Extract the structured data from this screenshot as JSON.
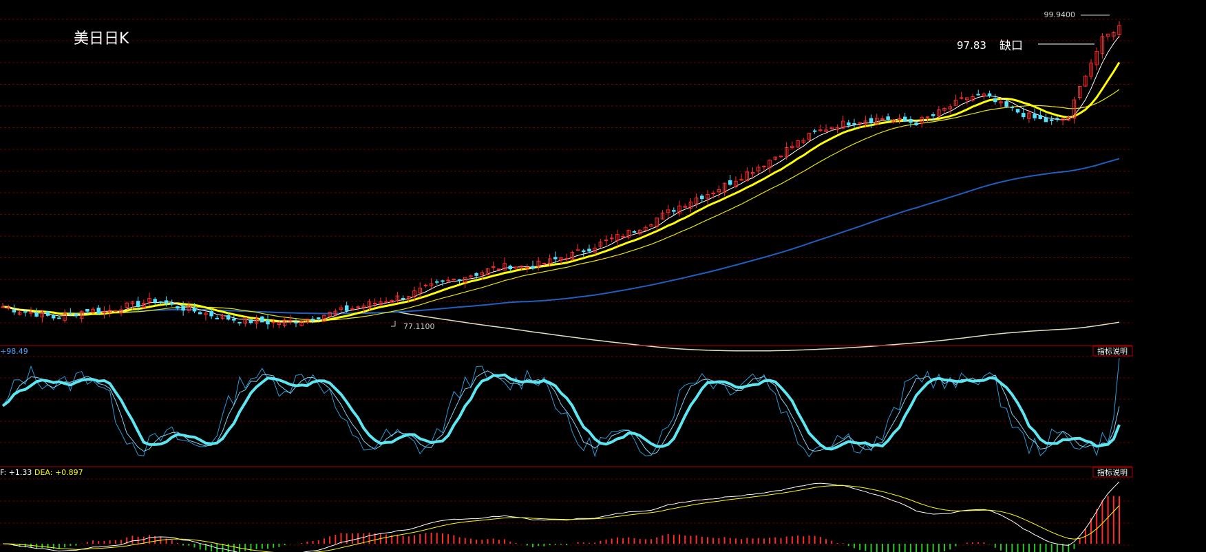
{
  "chart_data": [
    {
      "type": "candlestick",
      "title": "美日日K",
      "annotations": {
        "high_label": "99.9400",
        "low_label": "77.1100",
        "gap_value": "97.83",
        "gap_text": "缺口"
      },
      "series": [
        {
          "name": "close",
          "values": [
            78.4,
            78.1,
            77.9,
            77.6,
            77.8,
            78.2,
            78.0,
            78.4,
            78.6,
            78.9,
            78.5,
            78.2,
            77.9,
            77.6,
            77.4,
            77.3,
            77.2,
            77.3,
            77.5,
            77.8,
            78.1,
            78.4,
            78.7,
            79.0,
            79.3,
            79.8,
            80.2,
            80.6,
            80.9,
            81.3,
            81.5,
            81.4,
            81.7,
            82.1,
            82.5,
            83.0,
            83.5,
            84.0,
            84.6,
            85.3,
            86.0,
            86.6,
            87.1,
            87.8,
            88.5,
            89.2,
            90.0,
            90.8,
            91.5,
            92.0,
            92.3,
            92.5,
            92.6,
            92.4,
            92.3,
            92.8,
            93.5,
            94.2,
            94.3,
            93.6,
            93.1,
            92.6,
            92.3,
            92.7,
            96.0,
            98.5,
            99.6
          ]
        }
      ],
      "ylim": [
        76,
        101
      ],
      "colors": {
        "up": "#ff2b2b",
        "down": "#54e3ff",
        "ma5": "#ffffff",
        "ma10": "#ffff00",
        "ma20": "#e6e600",
        "ma60": "#1f5fbf",
        "ma120": "#e0e0c0"
      }
    },
    {
      "type": "line",
      "indicator": "oscillator",
      "header": "+98.49",
      "button": "指标说明",
      "ylim": [
        0,
        100
      ]
    },
    {
      "type": "macd",
      "header_dif": "F: +1.33",
      "header_dea": "DEA: +0.897",
      "button": "指标说明",
      "colors": {
        "dif": "#ffffff",
        "dea": "#ffff00",
        "up": "#ff2b2b",
        "down": "#22cc22"
      }
    }
  ]
}
